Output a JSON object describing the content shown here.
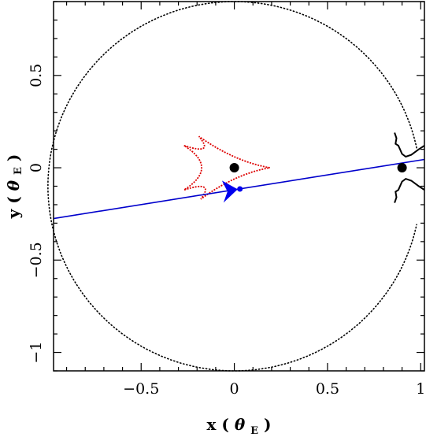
{
  "chart_data": {
    "type": "scatter",
    "xlabel": "x (θE)",
    "ylabel": "y (θE)",
    "xlabel_parts": {
      "prefix": "x",
      "symbol": "θ",
      "subscript": "E"
    },
    "ylabel_parts": {
      "prefix": "y",
      "symbol": "θ",
      "subscript": "E"
    },
    "xlim": [
      -0.97,
      1.02
    ],
    "ylim": [
      -1.1,
      0.9
    ],
    "x_ticks": [
      -0.5,
      0,
      0.5,
      1
    ],
    "x_tick_labels": [
      "−0.5",
      "0",
      "0.5",
      "1"
    ],
    "y_ticks": [
      -1,
      -0.5,
      0,
      0.5
    ],
    "y_tick_labels": [
      "−1",
      "−0.5",
      "0",
      "0.5"
    ],
    "grid": false,
    "lenses": [
      {
        "x": 0.0,
        "y": 0.0
      },
      {
        "x": 0.9,
        "y": 0.0
      }
    ],
    "source_trajectory": {
      "color": "#0000cc",
      "x": [
        -0.97,
        1.02
      ],
      "y": [
        -0.275,
        0.045
      ]
    },
    "source_position": {
      "x": 0.03,
      "y": -0.115
    },
    "arrow": {
      "x": -0.02,
      "y": -0.125,
      "direction": "right",
      "color": "#0000ee"
    },
    "caustic": {
      "color": "#dd0000",
      "cusps": [
        {
          "x": -0.27,
          "y": 0.12
        },
        {
          "x": 0.19,
          "y": 0.0
        },
        {
          "x": -0.27,
          "y": -0.12
        },
        {
          "x": -0.18,
          "y": -0.17
        },
        {
          "x": -0.19,
          "y": 0.17
        }
      ]
    },
    "critical_curve": {
      "color": "#000000",
      "outer_radius": 1.0,
      "center": {
        "x": 0.0,
        "y": -0.1
      },
      "planet_region_x": 0.88
    }
  }
}
